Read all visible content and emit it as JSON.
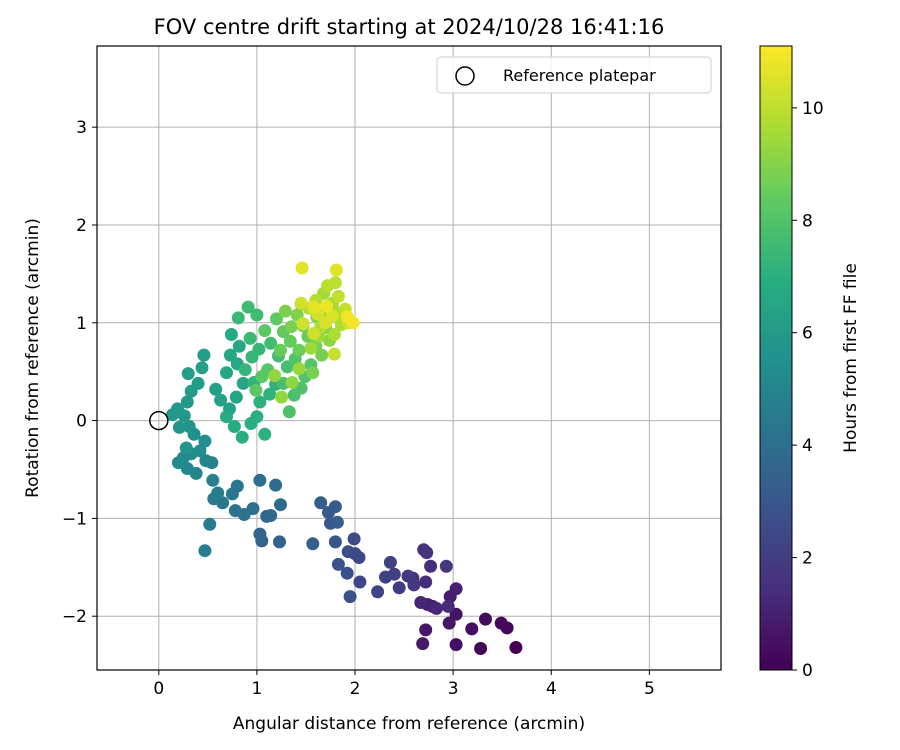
{
  "chart_data": {
    "type": "scatter",
    "title": "FOV centre drift starting at 2024/10/28 16:41:16",
    "xlabel": "Angular distance from reference (arcmin)",
    "ylabel": "Rotation from reference (arcmin)",
    "xlim": [
      -0.63,
      5.73
    ],
    "ylim": [
      -2.55,
      3.83
    ],
    "xticks": [
      0,
      1,
      2,
      3,
      4,
      5
    ],
    "yticks": [
      -2,
      -1,
      0,
      1,
      2,
      3
    ],
    "grid": true,
    "legend": {
      "position": "top-right",
      "entries": [
        "Reference platepar"
      ]
    },
    "reference_point": {
      "x": 0,
      "y": 0,
      "label": "Reference platepar"
    },
    "colorbar": {
      "label": "Hours from first FF file",
      "range": [
        0,
        11.1
      ],
      "ticks": [
        0,
        2,
        4,
        6,
        8,
        10
      ],
      "colormap": "viridis"
    },
    "points": [
      {
        "x": 3.64,
        "y": -2.32,
        "t": 0.05
      },
      {
        "x": 3.28,
        "y": -2.33,
        "t": 0.12
      },
      {
        "x": 3.55,
        "y": -2.12,
        "t": 0.2
      },
      {
        "x": 3.49,
        "y": -2.07,
        "t": 0.28
      },
      {
        "x": 3.33,
        "y": -2.03,
        "t": 0.35
      },
      {
        "x": 3.19,
        "y": -2.13,
        "t": 0.42
      },
      {
        "x": 3.03,
        "y": -2.29,
        "t": 0.5
      },
      {
        "x": 3.03,
        "y": -1.98,
        "t": 0.58
      },
      {
        "x": 2.96,
        "y": -2.07,
        "t": 0.65
      },
      {
        "x": 2.72,
        "y": -2.14,
        "t": 0.72
      },
      {
        "x": 2.69,
        "y": -2.28,
        "t": 0.8
      },
      {
        "x": 2.79,
        "y": -1.9,
        "t": 0.88
      },
      {
        "x": 2.97,
        "y": -1.8,
        "t": 0.95
      },
      {
        "x": 3.03,
        "y": -1.72,
        "t": 1.02
      },
      {
        "x": 2.74,
        "y": -1.88,
        "t": 1.1
      },
      {
        "x": 2.67,
        "y": -1.86,
        "t": 1.18
      },
      {
        "x": 2.83,
        "y": -1.92,
        "t": 1.25
      },
      {
        "x": 2.95,
        "y": -1.9,
        "t": 1.32
      },
      {
        "x": 2.72,
        "y": -1.65,
        "t": 1.4
      },
      {
        "x": 2.77,
        "y": -1.49,
        "t": 1.48
      },
      {
        "x": 2.59,
        "y": -1.61,
        "t": 1.55
      },
      {
        "x": 2.73,
        "y": -1.35,
        "t": 1.62
      },
      {
        "x": 2.7,
        "y": -1.32,
        "t": 1.7
      },
      {
        "x": 2.93,
        "y": -1.49,
        "t": 1.78
      },
      {
        "x": 2.6,
        "y": -1.68,
        "t": 1.85
      },
      {
        "x": 2.54,
        "y": -1.59,
        "t": 1.92
      },
      {
        "x": 2.45,
        "y": -1.71,
        "t": 2.0
      },
      {
        "x": 2.4,
        "y": -1.57,
        "t": 2.08
      },
      {
        "x": 2.36,
        "y": -1.45,
        "t": 2.15
      },
      {
        "x": 2.31,
        "y": -1.6,
        "t": 2.22
      },
      {
        "x": 2.23,
        "y": -1.75,
        "t": 2.3
      },
      {
        "x": 2.05,
        "y": -1.65,
        "t": 2.38
      },
      {
        "x": 2.04,
        "y": -1.4,
        "t": 2.45
      },
      {
        "x": 2.0,
        "y": -1.36,
        "t": 2.52
      },
      {
        "x": 1.99,
        "y": -1.21,
        "t": 2.6
      },
      {
        "x": 1.93,
        "y": -1.34,
        "t": 2.68
      },
      {
        "x": 1.92,
        "y": -1.56,
        "t": 2.75
      },
      {
        "x": 1.95,
        "y": -1.8,
        "t": 2.82
      },
      {
        "x": 1.83,
        "y": -1.47,
        "t": 2.9
      },
      {
        "x": 1.8,
        "y": -1.24,
        "t": 2.98
      },
      {
        "x": 1.75,
        "y": -1.05,
        "t": 3.05
      },
      {
        "x": 1.73,
        "y": -0.94,
        "t": 3.12
      },
      {
        "x": 1.8,
        "y": -0.88,
        "t": 3.2
      },
      {
        "x": 1.82,
        "y": -1.04,
        "t": 3.28
      },
      {
        "x": 1.65,
        "y": -0.84,
        "t": 3.35
      },
      {
        "x": 1.57,
        "y": -1.26,
        "t": 3.42
      },
      {
        "x": 1.23,
        "y": -1.24,
        "t": 3.5
      },
      {
        "x": 1.05,
        "y": -1.23,
        "t": 3.58
      },
      {
        "x": 1.03,
        "y": -1.16,
        "t": 3.65
      },
      {
        "x": 1.1,
        "y": -0.98,
        "t": 3.72
      },
      {
        "x": 1.14,
        "y": -0.97,
        "t": 3.8
      },
      {
        "x": 1.24,
        "y": -0.86,
        "t": 3.88
      },
      {
        "x": 1.19,
        "y": -0.66,
        "t": 3.95
      },
      {
        "x": 1.03,
        "y": -0.61,
        "t": 4.02
      },
      {
        "x": 0.96,
        "y": -0.9,
        "t": 4.1
      },
      {
        "x": 0.87,
        "y": -0.96,
        "t": 4.18
      },
      {
        "x": 0.78,
        "y": -0.92,
        "t": 4.25
      },
      {
        "x": 0.75,
        "y": -0.75,
        "t": 4.32
      },
      {
        "x": 0.8,
        "y": -0.67,
        "t": 4.4
      },
      {
        "x": 0.65,
        "y": -0.84,
        "t": 4.48
      },
      {
        "x": 0.56,
        "y": -0.8,
        "t": 4.55
      },
      {
        "x": 0.52,
        "y": -1.06,
        "t": 4.62
      },
      {
        "x": 0.47,
        "y": -1.33,
        "t": 4.7
      },
      {
        "x": 0.6,
        "y": -0.74,
        "t": 4.78
      },
      {
        "x": 0.55,
        "y": -0.61,
        "t": 4.85
      },
      {
        "x": 0.54,
        "y": -0.43,
        "t": 4.92
      },
      {
        "x": 0.48,
        "y": -0.41,
        "t": 5.0
      },
      {
        "x": 0.38,
        "y": -0.54,
        "t": 5.08
      },
      {
        "x": 0.29,
        "y": -0.49,
        "t": 5.15
      },
      {
        "x": 0.2,
        "y": -0.43,
        "t": 5.22
      },
      {
        "x": 0.25,
        "y": -0.38,
        "t": 5.3
      },
      {
        "x": 0.33,
        "y": -0.34,
        "t": 5.38
      },
      {
        "x": 0.42,
        "y": -0.31,
        "t": 5.45
      },
      {
        "x": 0.47,
        "y": -0.21,
        "t": 5.52
      },
      {
        "x": 0.36,
        "y": -0.14,
        "t": 5.6
      },
      {
        "x": 0.31,
        "y": -0.06,
        "t": 5.68
      },
      {
        "x": 0.28,
        "y": -0.28,
        "t": 5.75
      },
      {
        "x": 0.21,
        "y": -0.07,
        "t": 5.82
      },
      {
        "x": 0.26,
        "y": 0.05,
        "t": 5.88
      },
      {
        "x": 0.14,
        "y": 0.06,
        "t": 5.92
      },
      {
        "x": 0.19,
        "y": 0.12,
        "t": 5.98
      },
      {
        "x": 0.29,
        "y": 0.19,
        "t": 6.02
      },
      {
        "x": 0.33,
        "y": 0.3,
        "t": 6.08
      },
      {
        "x": 0.4,
        "y": 0.38,
        "t": 6.12
      },
      {
        "x": 0.3,
        "y": 0.48,
        "t": 6.18
      },
      {
        "x": 0.44,
        "y": 0.54,
        "t": 6.22
      },
      {
        "x": 0.46,
        "y": 0.67,
        "t": 6.28
      },
      {
        "x": 0.58,
        "y": 0.32,
        "t": 6.32
      },
      {
        "x": 0.63,
        "y": 0.21,
        "t": 6.38
      },
      {
        "x": 0.72,
        "y": 0.12,
        "t": 6.42
      },
      {
        "x": 0.79,
        "y": 0.24,
        "t": 6.48
      },
      {
        "x": 0.86,
        "y": 0.38,
        "t": 6.52
      },
      {
        "x": 0.69,
        "y": 0.49,
        "t": 6.58
      },
      {
        "x": 0.8,
        "y": 0.58,
        "t": 6.62
      },
      {
        "x": 0.73,
        "y": 0.67,
        "t": 6.68
      },
      {
        "x": 0.82,
        "y": 0.76,
        "t": 6.72
      },
      {
        "x": 0.74,
        "y": 0.88,
        "t": 6.78
      },
      {
        "x": 0.69,
        "y": 0.04,
        "t": 6.82
      },
      {
        "x": 0.77,
        "y": -0.06,
        "t": 6.88
      },
      {
        "x": 0.85,
        "y": -0.17,
        "t": 6.92
      },
      {
        "x": 0.94,
        "y": -0.03,
        "t": 6.98
      },
      {
        "x": 1.0,
        "y": 0.04,
        "t": 7.02
      },
      {
        "x": 1.08,
        "y": -0.14,
        "t": 7.08
      },
      {
        "x": 1.03,
        "y": 0.19,
        "t": 7.12
      },
      {
        "x": 1.13,
        "y": 0.27,
        "t": 7.18
      },
      {
        "x": 1.19,
        "y": 0.37,
        "t": 7.22
      },
      {
        "x": 0.97,
        "y": 0.39,
        "t": 7.28
      },
      {
        "x": 0.88,
        "y": 0.52,
        "t": 7.32
      },
      {
        "x": 0.95,
        "y": 0.65,
        "t": 7.38
      },
      {
        "x": 1.02,
        "y": 0.73,
        "t": 7.42
      },
      {
        "x": 0.93,
        "y": 0.84,
        "t": 7.48
      },
      {
        "x": 0.81,
        "y": 1.05,
        "t": 7.52
      },
      {
        "x": 0.91,
        "y": 1.16,
        "t": 7.58
      },
      {
        "x": 1.0,
        "y": 1.08,
        "t": 7.62
      },
      {
        "x": 1.14,
        "y": 0.79,
        "t": 7.68
      },
      {
        "x": 1.22,
        "y": 0.66,
        "t": 7.72
      },
      {
        "x": 1.31,
        "y": 0.55,
        "t": 7.78
      },
      {
        "x": 1.27,
        "y": 0.38,
        "t": 7.82
      },
      {
        "x": 1.38,
        "y": 0.26,
        "t": 7.88
      },
      {
        "x": 1.33,
        "y": 0.09,
        "t": 7.92
      },
      {
        "x": 1.45,
        "y": 0.33,
        "t": 7.98
      },
      {
        "x": 1.49,
        "y": 0.45,
        "t": 8.02
      },
      {
        "x": 1.39,
        "y": 0.63,
        "t": 8.08
      },
      {
        "x": 1.55,
        "y": 0.57,
        "t": 8.12
      },
      {
        "x": 1.11,
        "y": 0.52,
        "t": 8.18
      },
      {
        "x": 1.05,
        "y": 0.45,
        "t": 8.22
      },
      {
        "x": 0.99,
        "y": 0.31,
        "t": 8.28
      },
      {
        "x": 1.08,
        "y": 0.92,
        "t": 8.32
      },
      {
        "x": 1.2,
        "y": 1.04,
        "t": 8.38
      },
      {
        "x": 1.27,
        "y": 0.91,
        "t": 8.42
      },
      {
        "x": 1.34,
        "y": 0.81,
        "t": 8.48
      },
      {
        "x": 1.24,
        "y": 0.72,
        "t": 8.52
      },
      {
        "x": 1.43,
        "y": 0.72,
        "t": 8.58
      },
      {
        "x": 1.52,
        "y": 0.86,
        "t": 8.62
      },
      {
        "x": 1.47,
        "y": 0.97,
        "t": 8.68
      },
      {
        "x": 1.6,
        "y": 0.76,
        "t": 8.72
      },
      {
        "x": 1.66,
        "y": 0.67,
        "t": 8.78
      },
      {
        "x": 1.57,
        "y": 0.49,
        "t": 8.82
      },
      {
        "x": 1.35,
        "y": 0.96,
        "t": 8.88
      },
      {
        "x": 1.29,
        "y": 1.12,
        "t": 8.92
      },
      {
        "x": 1.41,
        "y": 1.08,
        "t": 8.98
      },
      {
        "x": 1.45,
        "y": 1.19,
        "t": 9.02
      },
      {
        "x": 1.61,
        "y": 1.06,
        "t": 9.08
      },
      {
        "x": 1.7,
        "y": 0.95,
        "t": 9.12
      },
      {
        "x": 1.74,
        "y": 0.82,
        "t": 9.18
      },
      {
        "x": 1.36,
        "y": 0.39,
        "t": 9.22
      },
      {
        "x": 1.18,
        "y": 0.46,
        "t": 9.28
      },
      {
        "x": 1.25,
        "y": 0.24,
        "t": 9.32
      },
      {
        "x": 1.43,
        "y": 0.53,
        "t": 9.38
      },
      {
        "x": 1.55,
        "y": 0.74,
        "t": 9.42
      },
      {
        "x": 1.63,
        "y": 0.86,
        "t": 9.48
      },
      {
        "x": 1.71,
        "y": 1.09,
        "t": 9.52
      },
      {
        "x": 1.77,
        "y": 1.2,
        "t": 9.58
      },
      {
        "x": 1.68,
        "y": 1.3,
        "t": 9.62
      },
      {
        "x": 1.82,
        "y": 1.1,
        "t": 9.68
      },
      {
        "x": 1.86,
        "y": 0.98,
        "t": 9.72
      },
      {
        "x": 1.79,
        "y": 0.88,
        "t": 9.78
      },
      {
        "x": 1.65,
        "y": 0.96,
        "t": 9.82
      },
      {
        "x": 1.53,
        "y": 1.15,
        "t": 9.88
      },
      {
        "x": 1.6,
        "y": 1.23,
        "t": 9.92
      },
      {
        "x": 1.72,
        "y": 1.38,
        "t": 9.98
      },
      {
        "x": 1.8,
        "y": 1.41,
        "t": 10.02
      },
      {
        "x": 1.83,
        "y": 1.27,
        "t": 10.08
      },
      {
        "x": 1.9,
        "y": 1.14,
        "t": 10.12
      },
      {
        "x": 1.93,
        "y": 1.0,
        "t": 10.18
      },
      {
        "x": 1.79,
        "y": 0.68,
        "t": 10.22
      },
      {
        "x": 1.58,
        "y": 0.89,
        "t": 10.28
      },
      {
        "x": 1.47,
        "y": 0.99,
        "t": 10.32
      },
      {
        "x": 1.45,
        "y": 1.2,
        "t": 10.38
      },
      {
        "x": 1.62,
        "y": 1.09,
        "t": 10.42
      },
      {
        "x": 1.7,
        "y": 1.0,
        "t": 10.48
      },
      {
        "x": 1.77,
        "y": 1.07,
        "t": 10.52
      },
      {
        "x": 1.81,
        "y": 1.54,
        "t": 10.58
      },
      {
        "x": 1.46,
        "y": 1.56,
        "t": 10.65
      },
      {
        "x": 1.58,
        "y": 1.16,
        "t": 10.72
      },
      {
        "x": 1.71,
        "y": 1.17,
        "t": 10.8
      },
      {
        "x": 1.92,
        "y": 1.06,
        "t": 10.88
      },
      {
        "x": 1.98,
        "y": 1.0,
        "t": 10.95
      }
    ]
  }
}
